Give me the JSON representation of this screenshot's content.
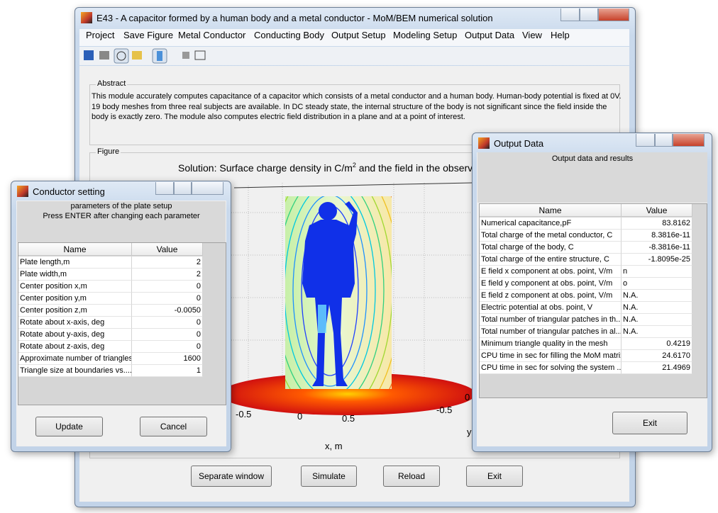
{
  "main_window": {
    "title": "E43 - A capacitor formed by a human body and a metal conductor - MoM/BEM numerical solution",
    "menu": [
      "Project",
      "Save Figure",
      "Metal Conductor",
      "Conducting Body",
      "Output Setup",
      "Modeling Setup",
      "Output Data",
      "View",
      "Help"
    ],
    "abstract": {
      "label": "Abstract",
      "lines": [
        "This module accurately computes capacitance of a capacitor which consists of a metal conductor and a human body. Human-body potential is fixed at 0V.",
        "19 body meshes from three real subjects are available. In DC steady state, the internal structure of the body is not significant since the field inside the",
        "body is exactly zero. The module also computes electric field distribution in a plane and at a point of interest."
      ]
    },
    "figure": {
      "label": "Figure",
      "title": "Solution: Surface charge density in C/m",
      "title_sup": "2",
      "title_rest": " and the field in the observation",
      "x_ticks": [
        "-0.5",
        "0",
        "0.5"
      ],
      "x_label": "x, m",
      "y_ticks": [
        "-0.5",
        "0"
      ],
      "y_label": "y"
    },
    "buttons": [
      "Separate window",
      "Simulate",
      "Reload",
      "Exit"
    ]
  },
  "conductor_window": {
    "title": "Conductor setting",
    "header": [
      "parameters of the plate setup",
      "Press ENTER after changing each parameter"
    ],
    "columns": [
      "Name",
      "Value"
    ],
    "rows": [
      [
        "Plate length,m",
        "2"
      ],
      [
        "Plate width,m",
        "2"
      ],
      [
        "Center position x,m",
        "0"
      ],
      [
        "Center position y,m",
        "0"
      ],
      [
        "Center position z,m",
        "-0.0050"
      ],
      [
        "Rotate about x-axis, deg",
        "0"
      ],
      [
        "Rotate about y-axis, deg",
        "0"
      ],
      [
        "Rotate about z-axis, deg",
        "0"
      ],
      [
        "Approximate number of triangles",
        "1600"
      ],
      [
        "Triangle size at boundaries vs....",
        "1"
      ]
    ],
    "buttons": [
      "Update",
      "Cancel"
    ]
  },
  "output_window": {
    "title": "Output Data",
    "header": "Output data and results",
    "columns": [
      "Name",
      "Value"
    ],
    "rows": [
      [
        "Numerical capacitance,pF",
        "83.8162"
      ],
      [
        "Total charge of the metal conductor, C",
        "8.3816e-11"
      ],
      [
        "Total charge of the body, C",
        "-8.3816e-11"
      ],
      [
        "Total charge of the entire structure, C",
        "-1.8095e-25"
      ],
      [
        "E field x component at obs. point, V/m",
        "n"
      ],
      [
        "E field y component at obs. point, V/m",
        "o"
      ],
      [
        "E field z component at obs. point, V/m",
        "N.A."
      ],
      [
        "Electric potential at obs. point, V",
        "N.A."
      ],
      [
        "Total number of triangular patches in th...",
        "N.A."
      ],
      [
        "Total number of triangular patches in al...",
        "N.A."
      ],
      [
        "Minimum triangle quality in the mesh",
        "0.4219"
      ],
      [
        "CPU time in sec for filling the MoM matrix",
        "24.6170"
      ],
      [
        "CPU time in sec for solving the system ...",
        "21.4969"
      ]
    ],
    "button": "Exit"
  }
}
